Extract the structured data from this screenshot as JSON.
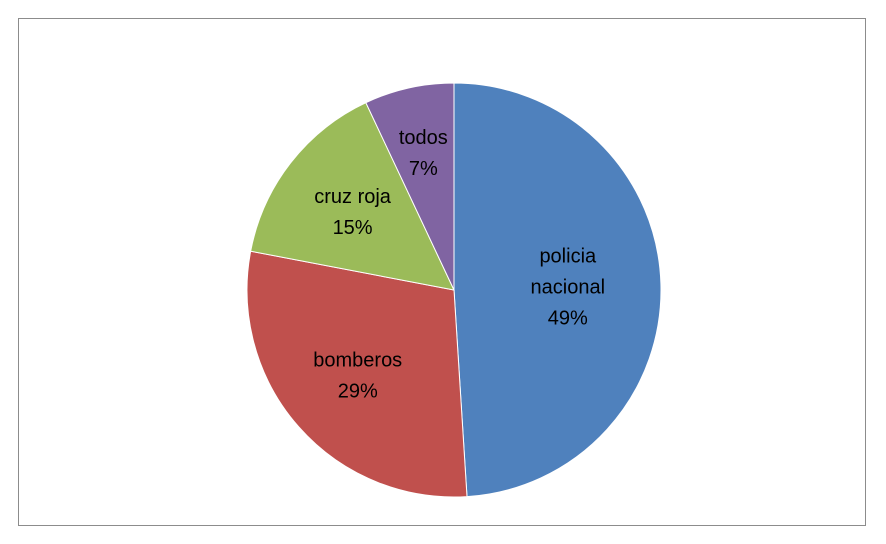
{
  "chart_data": {
    "type": "pie",
    "title": "",
    "start_angle_deg": 0,
    "direction": "clockwise",
    "slices": [
      {
        "label_lines": [
          "policia",
          "nacional"
        ],
        "percent_label": "49%",
        "value": 49,
        "color": "#4F81BD"
      },
      {
        "label_lines": [
          "bomberos"
        ],
        "percent_label": "29%",
        "value": 29,
        "color": "#C0504D"
      },
      {
        "label_lines": [
          "cruz roja"
        ],
        "percent_label": "15%",
        "value": 15,
        "color": "#9BBB59"
      },
      {
        "label_lines": [
          "todos"
        ],
        "percent_label": "7%",
        "value": 7,
        "color": "#8064A2"
      }
    ],
    "legend": "none",
    "data_labels": "inside"
  }
}
